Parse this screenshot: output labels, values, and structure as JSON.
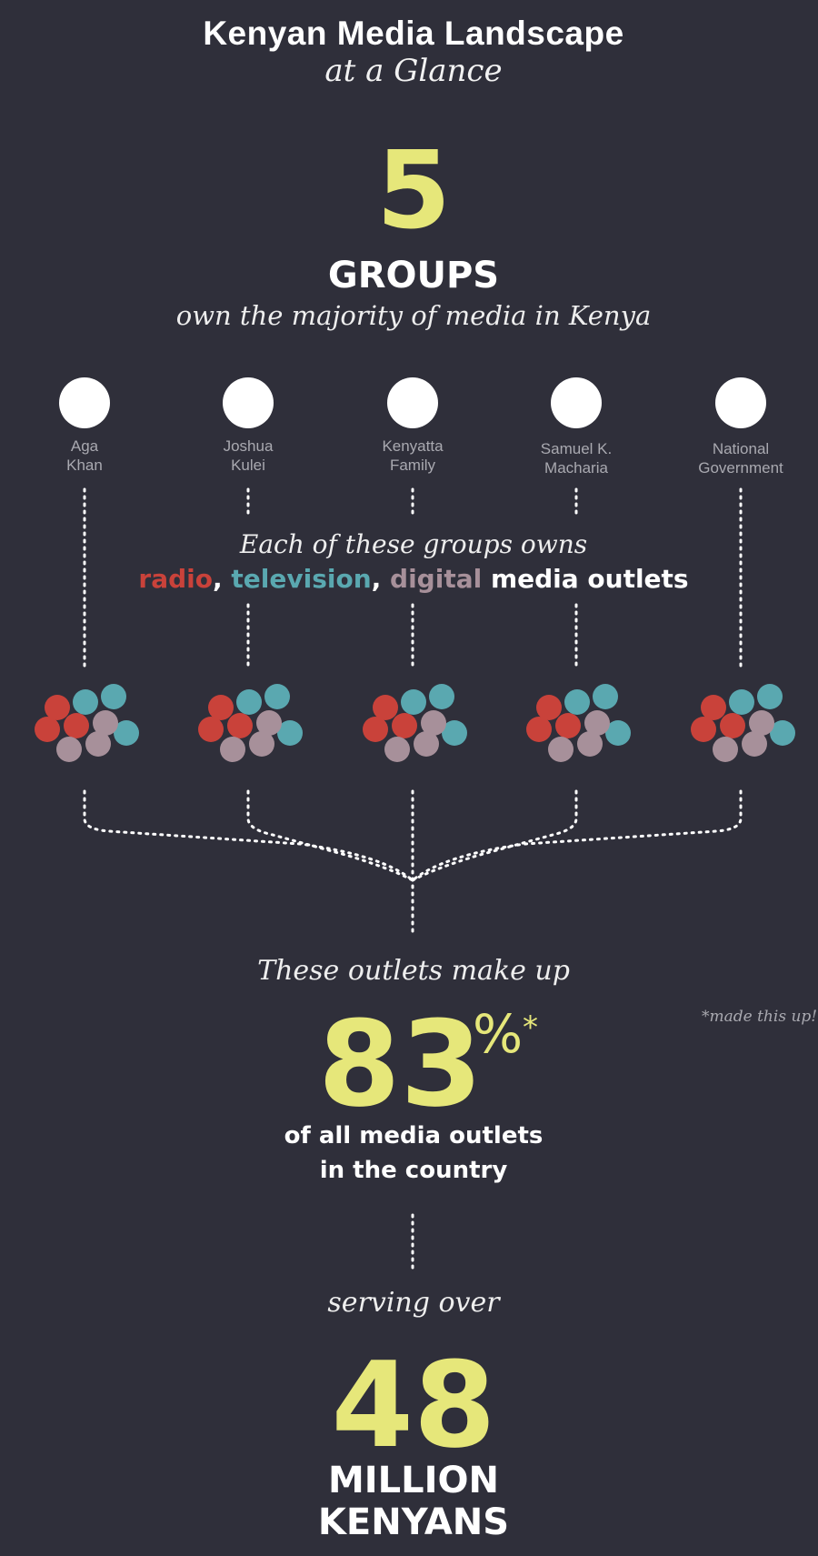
{
  "header": {
    "title": "Kenyan Media Landscape",
    "subtitle": "at a Glance"
  },
  "groups_stat": {
    "number": "5",
    "label": "GROUPS",
    "description": "own the majority of media in Kenya"
  },
  "owners": [
    {
      "line1": "Aga",
      "line2": "Khan"
    },
    {
      "line1": "Joshua",
      "line2": "Kulei"
    },
    {
      "line1": "Kenyatta",
      "line2": "Family"
    },
    {
      "line1": "Samuel K.",
      "line2": "Macharia"
    },
    {
      "line1": "National",
      "line2": "Government"
    }
  ],
  "outlets_note": {
    "line1": "Each of these groups owns",
    "radio": "radio",
    "sep1": ", ",
    "television": "television",
    "sep2": ", ",
    "digital": "digital",
    "suffix": " media outlets"
  },
  "outlet_colors": {
    "radio": "#c9423a",
    "television": "#5aa8b0",
    "digital": "#a7909a"
  },
  "share_stat": {
    "intro": "These outlets make up",
    "number": "83",
    "unit": "%",
    "asterisk": "*",
    "footnote": "*made this up!",
    "line1": "of all media outlets",
    "line2": "in the country"
  },
  "audience_stat": {
    "intro": "serving over",
    "number": "48",
    "line1": "MILLION",
    "line2": "KENYANS"
  },
  "colors": {
    "background": "#2f2f3a",
    "accent_yellow": "#e6e77a",
    "muted_text": "#a9a9b0"
  }
}
